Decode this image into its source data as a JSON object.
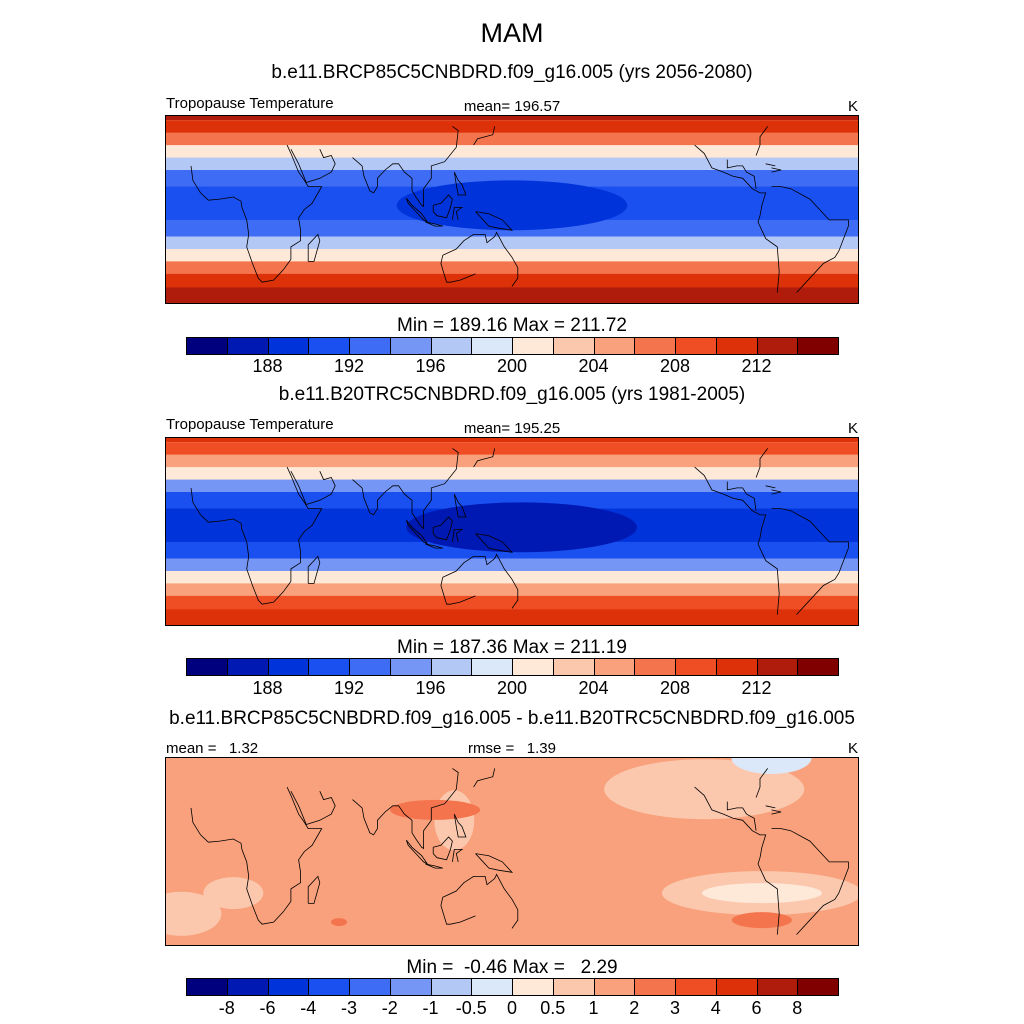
{
  "figure": {
    "title": "MAM"
  },
  "colors": {
    "abs_levels": [
      "#00007f",
      "#0019b3",
      "#0033d9",
      "#1a4ff0",
      "#3f6cf5",
      "#7596f5",
      "#b4c8f5",
      "#dbe8fa",
      "#fee8d8",
      "#fbc8ae",
      "#f8a17c",
      "#f4744d",
      "#ef4e25",
      "#dd3109",
      "#b01c0c",
      "#800000"
    ],
    "diff_levels": [
      "#00007f",
      "#0019b3",
      "#0033d9",
      "#1a4ff0",
      "#3f6cf5",
      "#7596f5",
      "#b4c8f5",
      "#dbe8fa",
      "#fee8d8",
      "#fbc8ae",
      "#f8a17c",
      "#f4744d",
      "#ef4e25",
      "#dd3109",
      "#b01c0c",
      "#800000"
    ]
  },
  "chart_data": [
    {
      "type": "heatmap",
      "panel_title": "b.e11.BRCP85C5CNBDRD.f09_g16.005 (yrs 2056-2080)",
      "left_label": "Tropopause Temperature",
      "center_label": "mean= 196.57",
      "units": "K",
      "mean": 196.57,
      "min": 189.16,
      "max": 211.72,
      "minmax_label": "Min = 189.16 Max = 211.72",
      "colorbar_ticks": [
        "188",
        "192",
        "196",
        "200",
        "204",
        "208",
        "212"
      ],
      "latitude_bands": [
        {
          "lat": 40,
          "value": 212
        },
        {
          "lat": 34,
          "value": 209
        },
        {
          "lat": 28,
          "value": 204
        },
        {
          "lat": 22,
          "value": 199
        },
        {
          "lat": 16,
          "value": 194
        },
        {
          "lat": 8,
          "value": 191
        },
        {
          "lat": 0,
          "value": 190.5
        },
        {
          "lat": -8,
          "value": 191
        },
        {
          "lat": -16,
          "value": 194
        },
        {
          "lat": -22,
          "value": 199
        },
        {
          "lat": -28,
          "value": 204
        },
        {
          "lat": -34,
          "value": 209
        },
        {
          "lat": -40,
          "value": 212
        }
      ],
      "warm_pool": {
        "lon": 150,
        "lat": 2,
        "value": 189.2
      }
    },
    {
      "type": "heatmap",
      "panel_title": "b.e11.B20TRC5CNBDRD.f09_g16.005 (yrs 1981-2005)",
      "left_label": "Tropopause Temperature",
      "center_label": "mean= 195.25",
      "units": "K",
      "mean": 195.25,
      "min": 187.36,
      "max": 211.19,
      "minmax_label": "Min = 187.36 Max = 211.19",
      "colorbar_ticks": [
        "188",
        "192",
        "196",
        "200",
        "204",
        "208",
        "212"
      ],
      "latitude_bands": [
        {
          "lat": 40,
          "value": 211
        },
        {
          "lat": 34,
          "value": 208
        },
        {
          "lat": 28,
          "value": 203
        },
        {
          "lat": 22,
          "value": 198
        },
        {
          "lat": 16,
          "value": 193
        },
        {
          "lat": 8,
          "value": 190
        },
        {
          "lat": 0,
          "value": 189.5
        },
        {
          "lat": -8,
          "value": 190
        },
        {
          "lat": -16,
          "value": 193
        },
        {
          "lat": -22,
          "value": 198
        },
        {
          "lat": -28,
          "value": 203
        },
        {
          "lat": -34,
          "value": 208
        },
        {
          "lat": -40,
          "value": 211
        }
      ],
      "warm_pool": {
        "lon": 155,
        "lat": 2,
        "value": 187.4
      }
    },
    {
      "type": "heatmap",
      "panel_title": "b.e11.BRCP85C5CNBDRD.f09_g16.005 - b.e11.B20TRC5CNBDRD.f09_g16.005",
      "left_label": "mean =   1.32",
      "center_label": "rmse =   1.39",
      "units": "K",
      "mean": 1.32,
      "rmse": 1.39,
      "min": -0.46,
      "max": 2.29,
      "minmax_label": "Min =  -0.46 Max =   2.29",
      "colorbar_ticks": [
        "-8",
        "-6",
        "-4",
        "-3",
        "-2",
        "-1",
        "-0.5",
        "0",
        "0.5",
        "1",
        "2",
        "3",
        "4",
        "6",
        "8"
      ],
      "background_value": 1.5
    }
  ]
}
